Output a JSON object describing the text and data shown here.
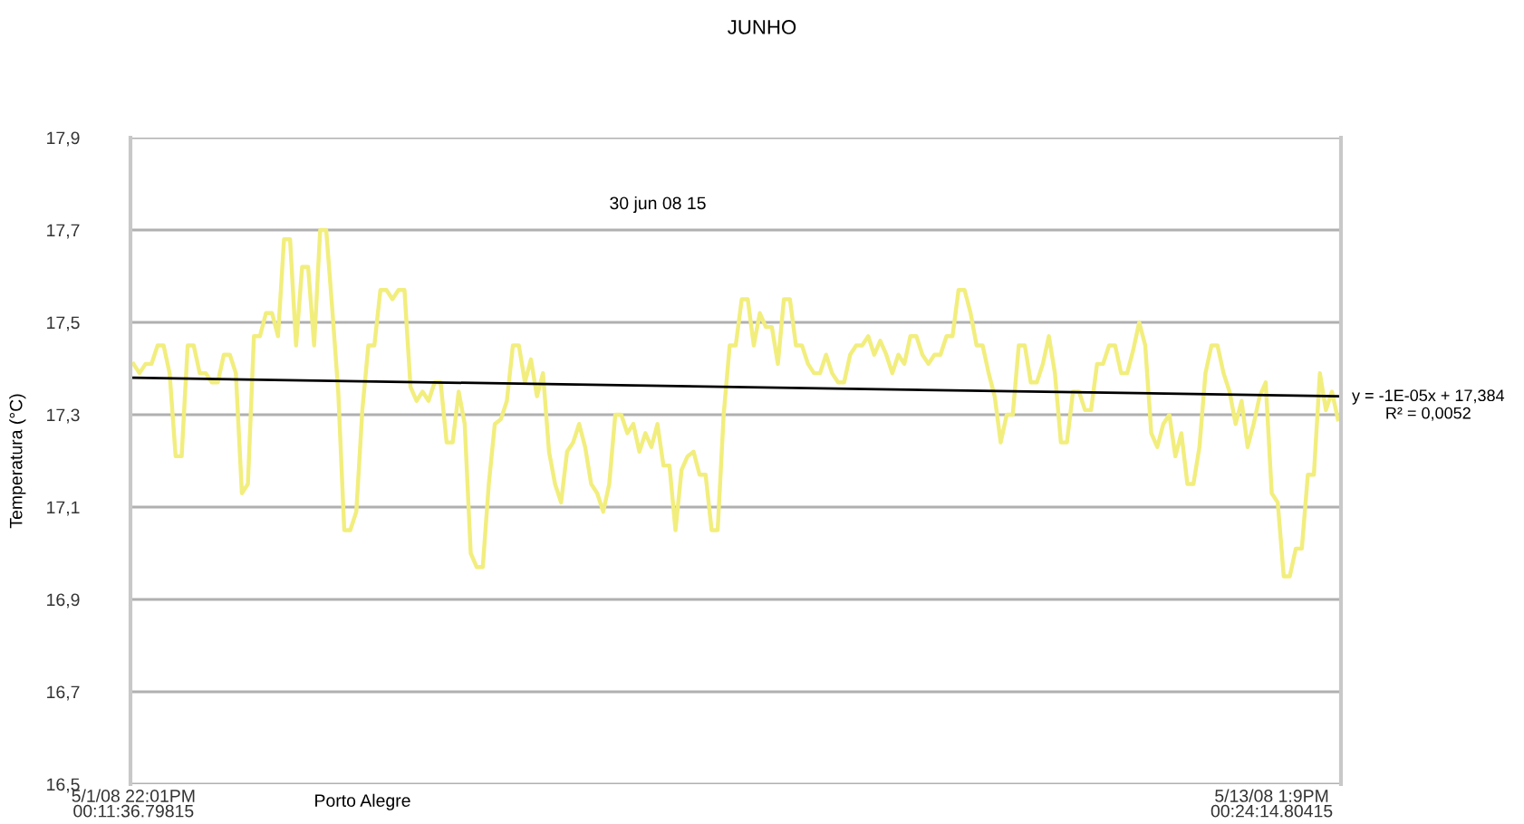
{
  "chart_data": {
    "type": "line",
    "title": "JUNHO",
    "xlabel": "Porto Alegre",
    "ylabel": "Temperatura (°C)",
    "categories": [
      "5/1/08 22:01PM\n00:11:36.79815",
      null,
      null,
      null,
      null,
      null,
      null,
      null,
      null,
      null,
      null,
      null,
      null,
      null,
      null,
      null,
      null,
      null,
      null,
      null,
      null,
      null,
      null,
      null,
      null,
      null,
      null,
      null,
      null,
      null,
      null,
      null,
      null,
      null,
      null,
      null,
      null,
      null,
      null,
      null,
      null,
      null,
      null,
      null,
      null,
      null,
      null,
      null,
      null,
      null,
      null,
      null,
      null,
      null,
      null,
      null,
      null,
      null,
      null,
      null,
      null,
      null,
      null,
      null,
      null,
      null,
      null,
      null,
      null,
      null,
      null,
      null,
      null,
      null,
      null,
      null,
      null,
      null,
      null,
      null,
      null,
      null,
      null,
      null,
      null,
      null,
      null,
      null,
      null,
      null,
      null,
      null,
      null,
      null,
      null,
      null,
      null,
      null,
      null,
      null,
      null,
      null,
      null,
      null,
      null,
      null,
      null,
      null,
      null,
      null,
      null,
      null,
      null,
      null,
      null,
      null,
      null,
      null,
      null,
      null,
      null,
      null,
      null,
      null,
      null,
      null,
      null,
      null,
      null,
      null,
      null,
      null,
      null,
      null,
      null,
      null,
      null,
      null,
      null,
      null,
      null,
      null,
      null,
      null,
      null,
      null,
      null,
      null,
      null,
      null,
      null,
      null,
      null,
      null,
      null,
      null,
      null,
      null,
      null,
      null,
      null,
      null,
      null,
      null,
      null,
      null,
      null,
      null,
      null,
      null,
      null,
      null,
      null,
      null,
      null,
      null,
      null,
      null,
      null,
      null,
      null,
      null,
      null,
      null,
      null,
      null,
      null,
      null,
      null,
      "5/13/08 1:9PM\n00:24:14.80415",
      null,
      null,
      null,
      null,
      null,
      null,
      null,
      null,
      null,
      null,
      null
    ],
    "ylim": [
      16.5,
      17.9
    ],
    "yticks": [
      {
        "value": 16.5,
        "label": "16,5"
      },
      {
        "value": 16.7,
        "label": "16,7"
      },
      {
        "value": 16.9,
        "label": "16,9"
      },
      {
        "value": 17.1,
        "label": "17,1"
      },
      {
        "value": 17.3,
        "label": "17,3"
      },
      {
        "value": 17.5,
        "label": "17,5"
      },
      {
        "value": 17.7,
        "label": "17,7"
      },
      {
        "value": 17.9,
        "label": "17,9"
      }
    ],
    "grid": "y",
    "legend": false,
    "annotations": [
      "30 jun 08 15",
      "y = -1E-05x + 17,384\nR² = 0,0052"
    ],
    "series": [
      {
        "color": "#f2ee7e",
        "values": [
          17.41,
          17.39,
          17.41,
          17.41,
          17.45,
          17.45,
          17.39,
          17.21,
          17.21,
          17.45,
          17.45,
          17.39,
          17.39,
          17.37,
          17.37,
          17.43,
          17.43,
          17.39,
          17.13,
          17.15,
          17.47,
          17.47,
          17.52,
          17.52,
          17.47,
          17.68,
          17.68,
          17.45,
          17.62,
          17.62,
          17.45,
          17.7,
          17.7,
          17.53,
          17.35,
          17.05,
          17.05,
          17.09,
          17.31,
          17.45,
          17.45,
          17.57,
          17.57,
          17.55,
          17.57,
          17.57,
          17.36,
          17.33,
          17.35,
          17.33,
          17.37,
          17.37,
          17.24,
          17.24,
          17.35,
          17.28,
          17.0,
          16.97,
          16.97,
          17.15,
          17.28,
          17.29,
          17.33,
          17.45,
          17.45,
          17.37,
          17.42,
          17.34,
          17.39,
          17.22,
          17.15,
          17.11,
          17.22,
          17.24,
          17.28,
          17.23,
          17.15,
          17.13,
          17.09,
          17.15,
          17.3,
          17.3,
          17.26,
          17.28,
          17.22,
          17.26,
          17.23,
          17.28,
          17.19,
          17.19,
          17.05,
          17.18,
          17.21,
          17.22,
          17.17,
          17.17,
          17.05,
          17.05,
          17.3,
          17.45,
          17.45,
          17.55,
          17.55,
          17.45,
          17.52,
          17.49,
          17.49,
          17.41,
          17.55,
          17.55,
          17.45,
          17.45,
          17.41,
          17.39,
          17.39,
          17.43,
          17.39,
          17.37,
          17.37,
          17.43,
          17.45,
          17.45,
          17.47,
          17.43,
          17.46,
          17.43,
          17.39,
          17.43,
          17.41,
          17.47,
          17.47,
          17.43,
          17.41,
          17.43,
          17.43,
          17.47,
          17.47,
          17.57,
          17.57,
          17.52,
          17.45,
          17.45,
          17.39,
          17.34,
          17.24,
          17.3,
          17.3,
          17.45,
          17.45,
          17.37,
          17.37,
          17.41,
          17.47,
          17.39,
          17.24,
          17.24,
          17.35,
          17.35,
          17.31,
          17.31,
          17.41,
          17.41,
          17.45,
          17.45,
          17.39,
          17.39,
          17.44,
          17.5,
          17.45,
          17.26,
          17.23,
          17.28,
          17.3,
          17.21,
          17.26,
          17.15,
          17.15,
          17.23,
          17.39,
          17.45,
          17.45,
          17.39,
          17.35,
          17.28,
          17.33,
          17.23,
          17.28,
          17.34,
          17.37,
          17.13,
          17.11,
          16.95,
          16.95,
          17.01,
          17.01,
          17.17,
          17.17,
          17.39,
          17.31,
          17.35,
          17.29
        ]
      },
      {
        "type": "line",
        "color": "#000000",
        "values": [
          17.38,
          null,
          null,
          null,
          null,
          null,
          null,
          null,
          null,
          null,
          null,
          null,
          null,
          null,
          null,
          null,
          null,
          null,
          null,
          null,
          null,
          null,
          null,
          null,
          null,
          null,
          null,
          null,
          null,
          null,
          null,
          null,
          null,
          null,
          null,
          null,
          null,
          null,
          null,
          null,
          null,
          null,
          null,
          null,
          null,
          null,
          null,
          null,
          null,
          null,
          null,
          null,
          null,
          null,
          null,
          null,
          null,
          null,
          null,
          null,
          null,
          null,
          null,
          null,
          null,
          null,
          null,
          null,
          null,
          null,
          null,
          null,
          null,
          null,
          null,
          null,
          null,
          null,
          null,
          null,
          null,
          null,
          null,
          null,
          null,
          null,
          null,
          null,
          null,
          null,
          null,
          null,
          null,
          null,
          null,
          null,
          null,
          null,
          null,
          null,
          null,
          null,
          null,
          null,
          null,
          null,
          null,
          null,
          null,
          null,
          null,
          null,
          null,
          null,
          null,
          null,
          null,
          null,
          null,
          null,
          null,
          null,
          null,
          null,
          null,
          null,
          null,
          null,
          null,
          null,
          null,
          null,
          null,
          null,
          null,
          null,
          null,
          null,
          null,
          null,
          null,
          null,
          null,
          null,
          null,
          null,
          null,
          null,
          null,
          null,
          null,
          null,
          null,
          null,
          null,
          null,
          null,
          null,
          null,
          null,
          null,
          null,
          null,
          null,
          null,
          null,
          null,
          null,
          null,
          null,
          null,
          null,
          null,
          null,
          null,
          null,
          null,
          null,
          null,
          null,
          null,
          null,
          null,
          null,
          null,
          null,
          null,
          null,
          null,
          null,
          null,
          null,
          null,
          null,
          null,
          null,
          null,
          null,
          null,
          null,
          17.34
        ]
      }
    ]
  }
}
